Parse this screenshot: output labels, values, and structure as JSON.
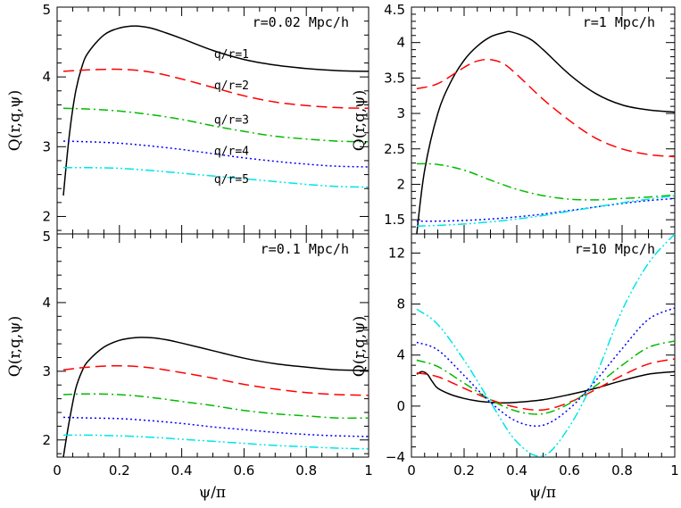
{
  "figure": {
    "xlabel": "ψ/π",
    "ylabel": "Q(r,q,ψ)"
  },
  "series_styles": [
    {
      "name": "q/r=1",
      "color": "#000000",
      "dash": "solid"
    },
    {
      "name": "q/r=2",
      "color": "#ff0000",
      "dash": "dashed"
    },
    {
      "name": "q/r=3",
      "color": "#00bb00",
      "dash": "dash-dot"
    },
    {
      "name": "q/r=4",
      "color": "#0000ff",
      "dash": "dotted"
    },
    {
      "name": "q/r=5",
      "color": "#00e5e5",
      "dash": "dash-dot-dot"
    }
  ],
  "annotations": [
    "q/r=1",
    "q/r=2",
    "q/r=3",
    "q/r=4",
    "q/r=5"
  ],
  "chart_data": [
    {
      "type": "line",
      "panel": "top-left",
      "title": "r=0.02 Mpc/h",
      "xlabel": "",
      "ylabel": "Q(r,q,ψ)",
      "xlim": [
        0,
        1
      ],
      "ylim": [
        1.75,
        5
      ],
      "xticks": [
        0,
        0.2,
        0.4,
        0.6,
        0.8,
        1
      ],
      "yticks": [
        2,
        3,
        4,
        5
      ],
      "yticklabels": [
        "2",
        "3",
        "4",
        "5"
      ],
      "series": [
        {
          "name": "q/r=1",
          "x": [
            0.02,
            0.04,
            0.06,
            0.08,
            0.1,
            0.15,
            0.2,
            0.25,
            0.3,
            0.35,
            0.4,
            0.5,
            0.6,
            0.7,
            0.8,
            0.9,
            1.0
          ],
          "values": [
            2.3,
            3.2,
            3.8,
            4.15,
            4.35,
            4.6,
            4.7,
            4.73,
            4.7,
            4.63,
            4.55,
            4.38,
            4.25,
            4.17,
            4.12,
            4.09,
            4.08
          ]
        },
        {
          "name": "q/r=2",
          "x": [
            0.02,
            0.1,
            0.2,
            0.3,
            0.4,
            0.5,
            0.6,
            0.7,
            0.8,
            0.9,
            1.0
          ],
          "values": [
            4.08,
            4.1,
            4.11,
            4.07,
            3.97,
            3.85,
            3.73,
            3.64,
            3.59,
            3.56,
            3.55
          ]
        },
        {
          "name": "q/r=3",
          "x": [
            0.02,
            0.1,
            0.2,
            0.3,
            0.4,
            0.5,
            0.6,
            0.7,
            0.8,
            0.9,
            1.0
          ],
          "values": [
            3.55,
            3.54,
            3.51,
            3.46,
            3.39,
            3.3,
            3.22,
            3.15,
            3.11,
            3.08,
            3.07
          ]
        },
        {
          "name": "q/r=4",
          "x": [
            0.02,
            0.1,
            0.2,
            0.3,
            0.4,
            0.5,
            0.6,
            0.7,
            0.8,
            0.9,
            1.0
          ],
          "values": [
            3.08,
            3.07,
            3.05,
            3.01,
            2.96,
            2.9,
            2.84,
            2.79,
            2.75,
            2.72,
            2.71
          ]
        },
        {
          "name": "q/r=5",
          "x": [
            0.02,
            0.1,
            0.2,
            0.3,
            0.4,
            0.5,
            0.6,
            0.7,
            0.8,
            0.9,
            1.0
          ],
          "values": [
            2.7,
            2.7,
            2.69,
            2.66,
            2.62,
            2.58,
            2.54,
            2.5,
            2.46,
            2.43,
            2.42
          ]
        }
      ],
      "annotations": [
        {
          "text": "q/r=1",
          "x": 0.56,
          "y": 4.27
        },
        {
          "text": "q/r=2",
          "x": 0.56,
          "y": 3.82
        },
        {
          "text": "q/r=3",
          "x": 0.56,
          "y": 3.33
        },
        {
          "text": "q/r=4",
          "x": 0.56,
          "y": 2.88
        },
        {
          "text": "q/r=5",
          "x": 0.56,
          "y": 2.48
        }
      ]
    },
    {
      "type": "line",
      "panel": "top-right",
      "title": "r=1 Mpc/h",
      "xlabel": "",
      "ylabel": "Q(r,q,ψ)",
      "xlim": [
        0,
        1
      ],
      "ylim": [
        1.3,
        4.5
      ],
      "xticks": [
        0,
        0.2,
        0.4,
        0.6,
        0.8,
        1
      ],
      "yticks": [
        1.5,
        2,
        2.5,
        3,
        3.5,
        4,
        4.5
      ],
      "yticklabels": [
        "1.5",
        "2",
        "2.5",
        "3",
        "3.5",
        "4",
        "4.5"
      ],
      "series": [
        {
          "name": "q/r=1",
          "x": [
            0.02,
            0.05,
            0.1,
            0.15,
            0.2,
            0.25,
            0.3,
            0.35,
            0.38,
            0.45,
            0.5,
            0.6,
            0.7,
            0.8,
            0.9,
            1.0
          ],
          "values": [
            1.3,
            2.2,
            3.0,
            3.45,
            3.75,
            3.95,
            4.08,
            4.14,
            4.15,
            4.05,
            3.9,
            3.55,
            3.28,
            3.12,
            3.05,
            3.02
          ]
        },
        {
          "name": "q/r=2",
          "x": [
            0.02,
            0.1,
            0.2,
            0.25,
            0.3,
            0.35,
            0.4,
            0.5,
            0.6,
            0.7,
            0.8,
            0.9,
            1.0
          ],
          "values": [
            3.35,
            3.42,
            3.65,
            3.74,
            3.76,
            3.7,
            3.55,
            3.2,
            2.9,
            2.65,
            2.5,
            2.42,
            2.39
          ]
        },
        {
          "name": "q/r=3",
          "x": [
            0.02,
            0.1,
            0.2,
            0.3,
            0.4,
            0.5,
            0.6,
            0.7,
            0.8,
            0.9,
            1.0
          ],
          "values": [
            2.29,
            2.28,
            2.2,
            2.06,
            1.93,
            1.84,
            1.79,
            1.78,
            1.8,
            1.82,
            1.85
          ]
        },
        {
          "name": "q/r=4",
          "x": [
            0.02,
            0.1,
            0.2,
            0.3,
            0.4,
            0.5,
            0.6,
            0.7,
            0.8,
            0.9,
            1.0
          ],
          "values": [
            1.48,
            1.48,
            1.49,
            1.51,
            1.54,
            1.58,
            1.63,
            1.68,
            1.73,
            1.77,
            1.8
          ]
        },
        {
          "name": "q/r=5",
          "x": [
            0.02,
            0.1,
            0.2,
            0.3,
            0.4,
            0.5,
            0.6,
            0.7,
            0.8,
            0.9,
            1.0
          ],
          "values": [
            1.41,
            1.42,
            1.44,
            1.47,
            1.51,
            1.56,
            1.62,
            1.68,
            1.74,
            1.79,
            1.84
          ]
        }
      ]
    },
    {
      "type": "line",
      "panel": "bottom-left",
      "title": "r=0.1 Mpc/h",
      "xlabel": "ψ/π",
      "ylabel": "Q(r,q,ψ)",
      "xlim": [
        0,
        1
      ],
      "ylim": [
        1.75,
        5
      ],
      "xticks": [
        0,
        0.2,
        0.4,
        0.6,
        0.8,
        1
      ],
      "xticklabels": [
        "0",
        "0.2",
        "0.4",
        "0.6",
        "0.8",
        "1"
      ],
      "yticks": [
        2,
        3,
        4,
        5
      ],
      "yticklabels": [
        "2",
        "3",
        "4",
        "5"
      ],
      "series": [
        {
          "name": "q/r=1",
          "x": [
            0.02,
            0.04,
            0.06,
            0.08,
            0.1,
            0.15,
            0.2,
            0.25,
            0.3,
            0.35,
            0.4,
            0.5,
            0.6,
            0.7,
            0.8,
            0.9,
            1.0
          ],
          "values": [
            1.75,
            2.3,
            2.75,
            3.0,
            3.15,
            3.35,
            3.45,
            3.49,
            3.49,
            3.46,
            3.41,
            3.3,
            3.19,
            3.11,
            3.06,
            3.02,
            3.01
          ]
        },
        {
          "name": "q/r=2",
          "x": [
            0.02,
            0.1,
            0.2,
            0.3,
            0.4,
            0.5,
            0.6,
            0.7,
            0.8,
            0.9,
            1.0
          ],
          "values": [
            3.02,
            3.06,
            3.08,
            3.05,
            2.98,
            2.9,
            2.81,
            2.74,
            2.69,
            2.66,
            2.65
          ]
        },
        {
          "name": "q/r=3",
          "x": [
            0.02,
            0.1,
            0.2,
            0.3,
            0.4,
            0.5,
            0.6,
            0.7,
            0.8,
            0.9,
            1.0
          ],
          "values": [
            2.66,
            2.67,
            2.66,
            2.62,
            2.56,
            2.5,
            2.43,
            2.38,
            2.35,
            2.32,
            2.32
          ]
        },
        {
          "name": "q/r=4",
          "x": [
            0.02,
            0.1,
            0.2,
            0.3,
            0.4,
            0.5,
            0.6,
            0.7,
            0.8,
            0.9,
            1.0
          ],
          "values": [
            2.33,
            2.32,
            2.31,
            2.28,
            2.24,
            2.19,
            2.15,
            2.11,
            2.08,
            2.06,
            2.05
          ]
        },
        {
          "name": "q/r=5",
          "x": [
            0.02,
            0.1,
            0.2,
            0.3,
            0.4,
            0.5,
            0.6,
            0.7,
            0.8,
            0.9,
            1.0
          ],
          "values": [
            2.07,
            2.07,
            2.06,
            2.04,
            2.01,
            1.98,
            1.95,
            1.92,
            1.9,
            1.88,
            1.87
          ]
        }
      ]
    },
    {
      "type": "line",
      "panel": "bottom-right",
      "title": "r=10 Mpc/h",
      "xlabel": "ψ/π",
      "ylabel": "Q(r,q,ψ)",
      "xlim": [
        0,
        1
      ],
      "ylim": [
        -4,
        13.5
      ],
      "xticks": [
        0,
        0.2,
        0.4,
        0.6,
        0.8,
        1
      ],
      "xticklabels": [
        "0",
        "0.2",
        "0.4",
        "0.6",
        "0.8",
        "1"
      ],
      "yticks": [
        -4,
        0,
        4,
        8,
        12
      ],
      "yticklabels": [
        "−4",
        "0",
        "4",
        "8",
        "12"
      ],
      "series": [
        {
          "name": "q/r=1",
          "x": [
            0.02,
            0.04,
            0.06,
            0.08,
            0.1,
            0.15,
            0.2,
            0.25,
            0.3,
            0.35,
            0.4,
            0.5,
            0.6,
            0.7,
            0.8,
            0.9,
            1.0
          ],
          "values": [
            2.5,
            2.7,
            2.5,
            1.9,
            1.4,
            0.9,
            0.6,
            0.4,
            0.3,
            0.25,
            0.3,
            0.5,
            0.9,
            1.4,
            2.0,
            2.5,
            2.7
          ]
        },
        {
          "name": "q/r=2",
          "x": [
            0.02,
            0.1,
            0.2,
            0.3,
            0.4,
            0.5,
            0.6,
            0.7,
            0.8,
            0.9,
            1.0
          ],
          "values": [
            2.6,
            2.3,
            1.4,
            0.5,
            -0.1,
            -0.3,
            0.3,
            1.3,
            2.4,
            3.3,
            3.7
          ]
        },
        {
          "name": "q/r=3",
          "x": [
            0.02,
            0.1,
            0.2,
            0.3,
            0.4,
            0.5,
            0.6,
            0.7,
            0.8,
            0.9,
            1.0
          ],
          "values": [
            3.6,
            3.1,
            1.8,
            0.5,
            -0.4,
            -0.6,
            0.2,
            1.6,
            3.2,
            4.6,
            5.1
          ]
        },
        {
          "name": "q/r=4",
          "x": [
            0.02,
            0.1,
            0.2,
            0.3,
            0.4,
            0.5,
            0.6,
            0.7,
            0.8,
            0.9,
            1.0
          ],
          "values": [
            5.0,
            4.4,
            2.4,
            0.3,
            -1.2,
            -1.5,
            -0.2,
            2.0,
            4.5,
            6.8,
            7.7
          ]
        },
        {
          "name": "q/r=5",
          "x": [
            0.02,
            0.1,
            0.2,
            0.3,
            0.4,
            0.5,
            0.6,
            0.7,
            0.8,
            0.9,
            1.0
          ],
          "values": [
            7.6,
            6.4,
            3.6,
            0.3,
            -2.8,
            -3.9,
            -1.6,
            2.4,
            7.5,
            11.2,
            13.5
          ]
        }
      ]
    }
  ]
}
